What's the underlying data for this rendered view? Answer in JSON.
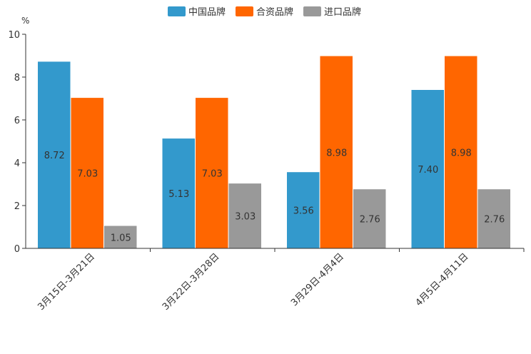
{
  "chart_data": {
    "type": "bar",
    "ylabel": "%",
    "ylim": [
      0,
      10
    ],
    "yticks": [
      0,
      2,
      4,
      6,
      8,
      10
    ],
    "categories": [
      "3月15日-3月21日",
      "3月22日-3月28日",
      "3月29日-4月4日",
      "4月5日-4月11日"
    ],
    "series": [
      {
        "name": "中国品牌",
        "color": "#3399CC",
        "values": [
          8.72,
          5.13,
          3.56,
          7.4
        ],
        "labels": [
          "8.72",
          "5.13",
          "3.56",
          "7.40"
        ]
      },
      {
        "name": "合资品牌",
        "color": "#FF6600",
        "values": [
          7.03,
          7.03,
          8.98,
          8.98
        ],
        "labels": [
          "7.03",
          "7.03",
          "8.98",
          "8.98"
        ]
      },
      {
        "name": "进口品牌",
        "color": "#999999",
        "values": [
          1.05,
          3.03,
          2.76,
          2.76
        ],
        "labels": [
          "1.05",
          "3.03",
          "2.76",
          "2.76"
        ]
      }
    ],
    "legend_position": "top-center",
    "grid": false
  }
}
